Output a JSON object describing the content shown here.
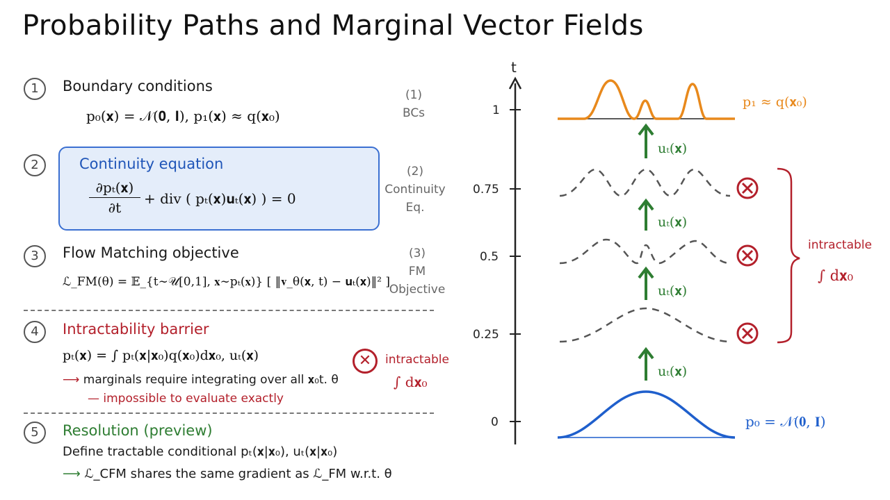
{
  "title": "Probability Paths and Marginal Vector Fields",
  "sections": [
    {
      "num": "1",
      "heading": "Boundary conditions",
      "eq": "p₀(𝐱) = 𝒩(𝟎, 𝐈),      p₁(𝐱) ≈ q(𝐱₀)",
      "side": [
        "(1)",
        "BCs"
      ]
    },
    {
      "num": "2",
      "heading": "Continuity equation",
      "eq_num": "∂pₜ(𝐱)",
      "eq_den": "∂t",
      "eq_rest": "+ div ( pₜ(𝐱)𝐮ₜ(𝐱) ) = 0",
      "side": [
        "(2)",
        "Continuity",
        "Eq."
      ]
    },
    {
      "num": "3",
      "heading": "Flow Matching objective",
      "eq": "ℒ_FM(θ) = 𝔼_{t∼𝒰[0,1], 𝐱∼pₜ(𝐱)} [ ‖𝐯_θ(𝐱, t) − 𝐮ₜ(𝐱)‖² ]",
      "side": [
        "(3)",
        "FM",
        "Objective"
      ]
    },
    {
      "num": "4",
      "heading": "Intractability barrier",
      "eq": "pₜ(𝐱) = ∫ pₜ(𝐱|𝐱₀)q(𝐱₀)d𝐱₀,  uₜ(𝐱)",
      "note1": "marginals require integrating over all 𝐱₀t. θ",
      "note2": "— impossible to evaluate exactly",
      "badge_label": "intractable",
      "badge_math": "∫ d𝐱₀"
    },
    {
      "num": "5",
      "heading": "Resolution (preview)",
      "line1": "Define tractable conditional  pₜ(𝐱|𝐱₀), uₜ(𝐱|𝐱₀)",
      "line2": "ℒ_CFM shares the same gradient as ℒ_FM w.r.t. θ"
    }
  ],
  "diagram": {
    "t_axis_label": "t",
    "ticks": [
      "1",
      "0.75",
      "0.5",
      "0.25",
      "0"
    ],
    "top_label": "p₁ ≈ q(𝐱₀)",
    "bottom_label": "p₀ = 𝒩(𝟎, 𝐈)",
    "arrow_label": "uₜ(𝐱)",
    "bracket_label": "intractable",
    "bracket_math": "∫ d𝐱₀",
    "colors": {
      "orange": "#e8891c",
      "blue": "#1f5fcc",
      "green": "#2e7d32",
      "red": "#b3202b",
      "gray": "#555555"
    }
  }
}
